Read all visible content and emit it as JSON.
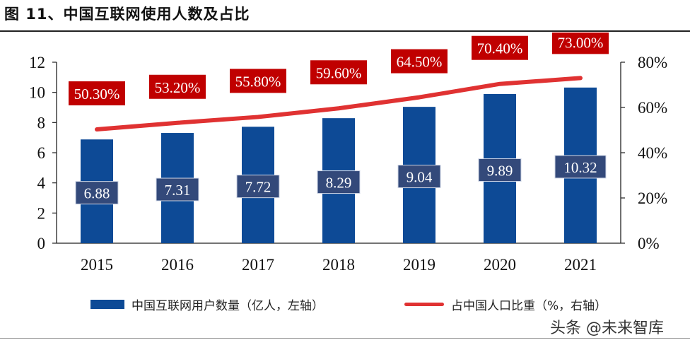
{
  "figure": {
    "title": "图 11、中国互联网使用人数及占比",
    "watermark": "头条 @未来智库"
  },
  "legend": {
    "bar_label": "中国互联网用户数量（亿人，左轴）",
    "line_label": "占中国人口比重（%，右轴）"
  },
  "colors": {
    "bar": "#0d4a96",
    "line": "#e03232",
    "label_box": "#c00000",
    "bar_label_box": "#33497a"
  },
  "chart_data": {
    "type": "bar",
    "categories": [
      "2015",
      "2016",
      "2017",
      "2018",
      "2019",
      "2020",
      "2021"
    ],
    "series": [
      {
        "name": "中国互联网用户数量（亿人，左轴）",
        "type": "bar",
        "axis": "left",
        "values": [
          6.88,
          7.31,
          7.72,
          8.29,
          9.04,
          9.89,
          10.32
        ],
        "labels": [
          "6.88",
          "7.31",
          "7.72",
          "8.29",
          "9.04",
          "9.89",
          "10.32"
        ]
      },
      {
        "name": "占中国人口比重（%，右轴）",
        "type": "line",
        "axis": "right",
        "values": [
          50.3,
          53.2,
          55.8,
          59.6,
          64.5,
          70.4,
          73.0
        ],
        "labels": [
          "50.30%",
          "53.20%",
          "55.80%",
          "59.60%",
          "64.50%",
          "70.40%",
          "73.00%"
        ]
      }
    ],
    "y_left": {
      "range": [
        0,
        12
      ],
      "ticks": [
        "0",
        "2",
        "4",
        "6",
        "8",
        "10",
        "12"
      ]
    },
    "y_right": {
      "range": [
        0,
        80
      ],
      "ticks": [
        "0%",
        "20%",
        "40%",
        "60%",
        "80%"
      ]
    },
    "grid": false,
    "legend_position": "bottom"
  }
}
